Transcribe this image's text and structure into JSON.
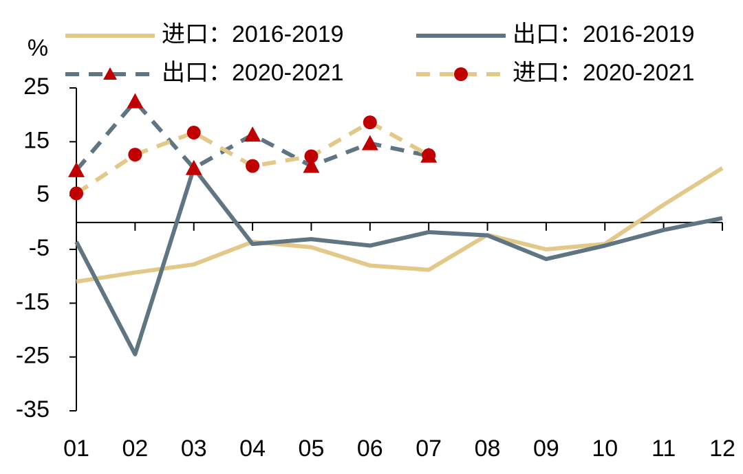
{
  "chart_data": {
    "type": "line",
    "y_unit_label": "%",
    "categories": [
      "01",
      "02",
      "03",
      "04",
      "05",
      "06",
      "07",
      "08",
      "09",
      "10",
      "11",
      "12"
    ],
    "ylim": [
      -35,
      25
    ],
    "yticks": [
      25,
      15,
      5,
      -5,
      -15,
      -25,
      -35
    ],
    "series": [
      {
        "name": "进口：2016-2019",
        "color": "#e2c98a",
        "dashed": false,
        "marker": null,
        "values": [
          -11.0,
          -9.3,
          -7.8,
          -3.6,
          -4.6,
          -8.0,
          -8.8,
          -2.3,
          -5.0,
          -4.0,
          3.3,
          10.1
        ]
      },
      {
        "name": "出口：2016-2019",
        "color": "#5f7582",
        "dashed": false,
        "marker": null,
        "values": [
          -3.6,
          -24.5,
          10.1,
          -4.0,
          -3.1,
          -4.3,
          -1.8,
          -2.4,
          -6.8,
          -4.3,
          -1.4,
          0.8
        ]
      },
      {
        "name": "出口：2020-2021",
        "color": "#5f7582",
        "dashed": true,
        "marker": "triangle",
        "marker_color": "#c00000",
        "values": [
          9.7,
          22.5,
          10.1,
          16.3,
          10.5,
          14.7,
          12.4,
          null,
          null,
          null,
          null,
          null
        ]
      },
      {
        "name": "进口：2020-2021",
        "color": "#e2c98a",
        "dashed": true,
        "marker": "circle",
        "marker_color": "#c00000",
        "values": [
          5.4,
          12.6,
          16.7,
          10.5,
          12.3,
          18.6,
          12.5,
          null,
          null,
          null,
          null,
          null
        ]
      }
    ]
  }
}
